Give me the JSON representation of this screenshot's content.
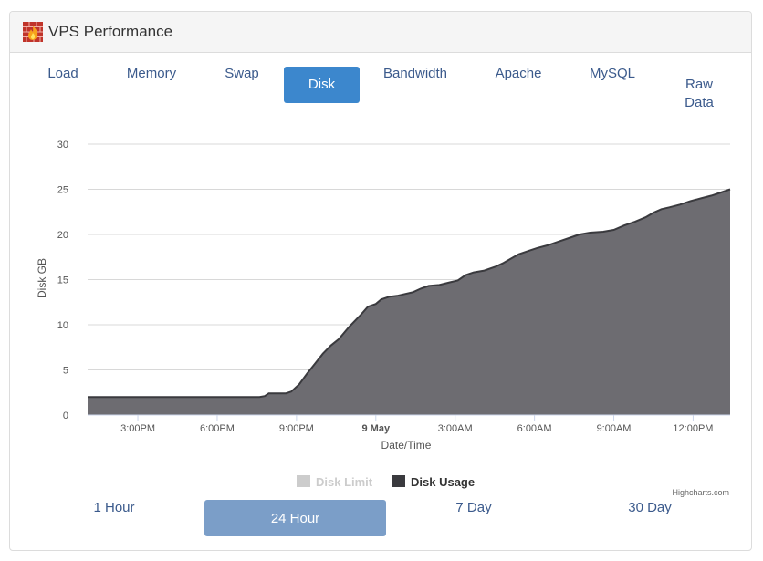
{
  "header": {
    "title": "VPS Performance",
    "logo_icon": "firewall-flame-icon"
  },
  "tabs": [
    {
      "label": "Load",
      "active": false
    },
    {
      "label": "Memory",
      "active": false
    },
    {
      "label": "Swap",
      "active": false
    },
    {
      "label": "Disk",
      "active": true
    },
    {
      "label": "Bandwidth",
      "active": false
    },
    {
      "label": "Apache",
      "active": false
    },
    {
      "label": "MySQL",
      "active": false
    },
    {
      "label": "Raw\nData",
      "active": false
    }
  ],
  "ranges": [
    {
      "label": "1 Hour",
      "active": false
    },
    {
      "label": "24 Hour",
      "active": true
    },
    {
      "label": "7 Day",
      "active": false
    },
    {
      "label": "30 Day",
      "active": false
    }
  ],
  "credits": "Highcharts.com",
  "colors": {
    "accent": "#3c87cd",
    "range_active": "#7b9ec8",
    "series": "#6d6c71",
    "series_line": "#3a3a3e",
    "legend_disabled": "#cccccc"
  },
  "chart_data": {
    "type": "area",
    "xlabel": "Date/Time",
    "ylabel": "Disk GB",
    "ylim": [
      0,
      30
    ],
    "y_ticks": [
      "0",
      "5",
      "10",
      "15",
      "20",
      "25",
      "30"
    ],
    "x_ticks": [
      "3:00PM",
      "6:00PM",
      "9:00PM",
      "9 May",
      "3:00AM",
      "6:00AM",
      "9:00AM",
      "12:00PM"
    ],
    "x_tick_hours": [
      15,
      18,
      21,
      24,
      27,
      30,
      33,
      36
    ],
    "xlim_hours": [
      13.1,
      37.4
    ],
    "grid": true,
    "legend_position": "bottom-center",
    "series": [
      {
        "name": "Disk Limit",
        "visible": false,
        "x": [],
        "values": []
      },
      {
        "name": "Disk Usage",
        "visible": true,
        "x": [
          13.1,
          17.0,
          19.6,
          19.8,
          19.95,
          20.6,
          20.8,
          21.1,
          21.4,
          21.7,
          22.0,
          22.3,
          22.6,
          23.0,
          23.4,
          23.7,
          24.0,
          24.2,
          24.5,
          24.8,
          25.1,
          25.4,
          25.7,
          26.0,
          26.4,
          26.8,
          27.1,
          27.4,
          27.7,
          28.1,
          28.5,
          28.8,
          29.1,
          29.4,
          29.8,
          30.1,
          30.5,
          30.9,
          31.3,
          31.7,
          32.1,
          32.6,
          33.0,
          33.4,
          33.8,
          34.2,
          34.5,
          34.8,
          35.1,
          35.5,
          35.9,
          36.3,
          36.7,
          37.0,
          37.4
        ],
        "values": [
          2.0,
          2.0,
          2.0,
          2.1,
          2.4,
          2.4,
          2.6,
          3.4,
          4.6,
          5.7,
          6.8,
          7.7,
          8.4,
          9.8,
          11.0,
          12.0,
          12.3,
          12.8,
          13.1,
          13.2,
          13.4,
          13.6,
          14.0,
          14.3,
          14.4,
          14.7,
          14.9,
          15.5,
          15.8,
          16.0,
          16.4,
          16.8,
          17.3,
          17.8,
          18.2,
          18.5,
          18.8,
          19.2,
          19.6,
          20.0,
          20.2,
          20.3,
          20.5,
          21.0,
          21.4,
          21.9,
          22.4,
          22.8,
          23.0,
          23.3,
          23.7,
          24.0,
          24.3,
          24.6,
          25.0
        ]
      }
    ]
  }
}
